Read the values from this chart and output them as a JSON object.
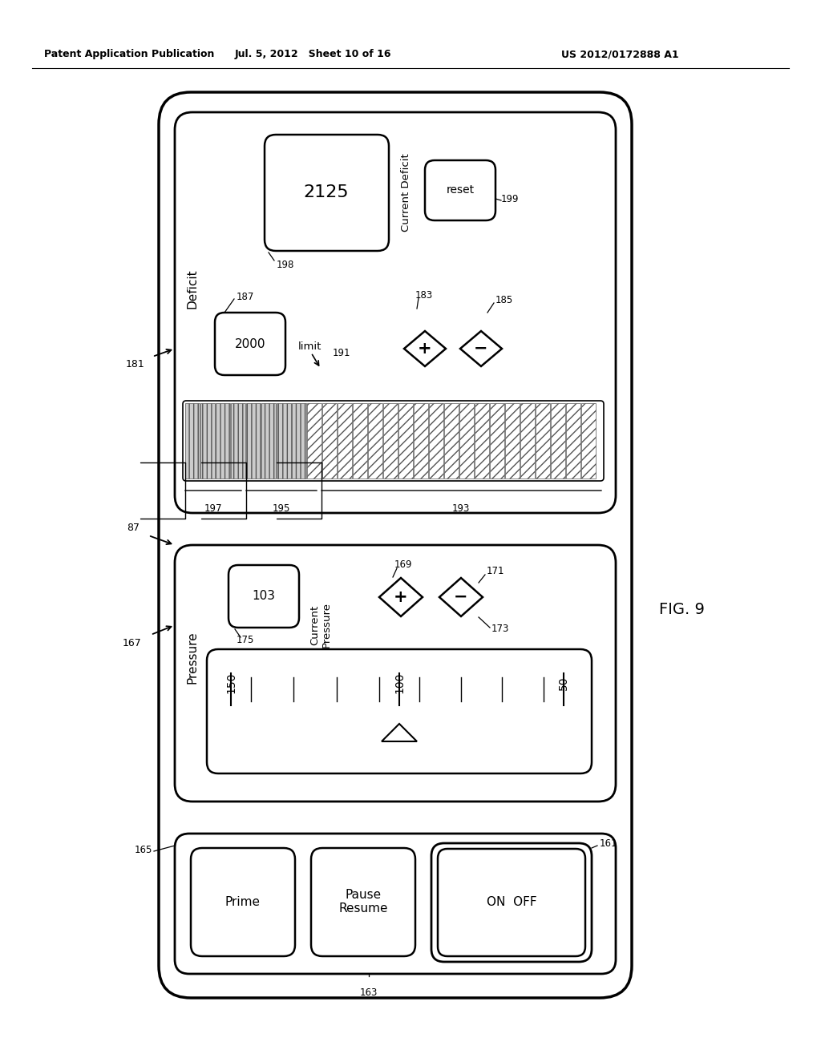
{
  "bg_color": "#ffffff",
  "header_left": "Patent Application Publication",
  "header_mid": "Jul. 5, 2012   Sheet 10 of 16",
  "header_right": "US 2012/0172888 A1",
  "fig_label": "FIG. 9"
}
